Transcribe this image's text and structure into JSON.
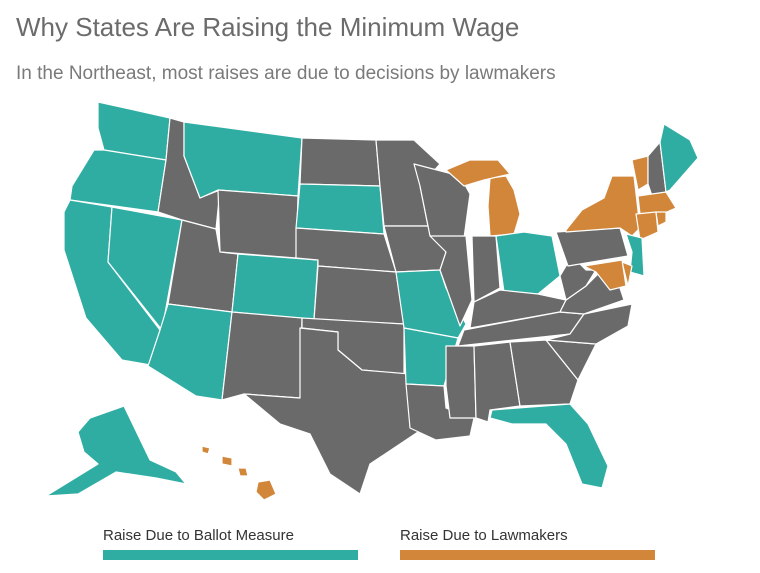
{
  "title": "Why States Are Raising the Minimum Wage",
  "subtitle": "In the Northeast, most raises are due to decisions by lawmakers",
  "colors": {
    "ballot": "#2fada3",
    "lawmakers": "#d1863a",
    "none": "#6a6a6a",
    "border": "#ffffff"
  },
  "legend": {
    "ballot_label": "Raise Due to Ballot Measure",
    "lawmakers_label": "Raise Due to Lawmakers"
  },
  "states": {
    "ballot": [
      "Washington",
      "Oregon",
      "California",
      "Nevada",
      "Arizona",
      "Montana",
      "Colorado",
      "South Dakota",
      "Missouri",
      "Arkansas",
      "Ohio",
      "Florida",
      "Alaska",
      "Maine",
      "New Jersey"
    ],
    "lawmakers": [
      "Michigan",
      "New York",
      "Vermont",
      "Massachusetts",
      "Connecticut",
      "Rhode Island",
      "Maryland",
      "Delaware",
      "Hawaii"
    ]
  }
}
